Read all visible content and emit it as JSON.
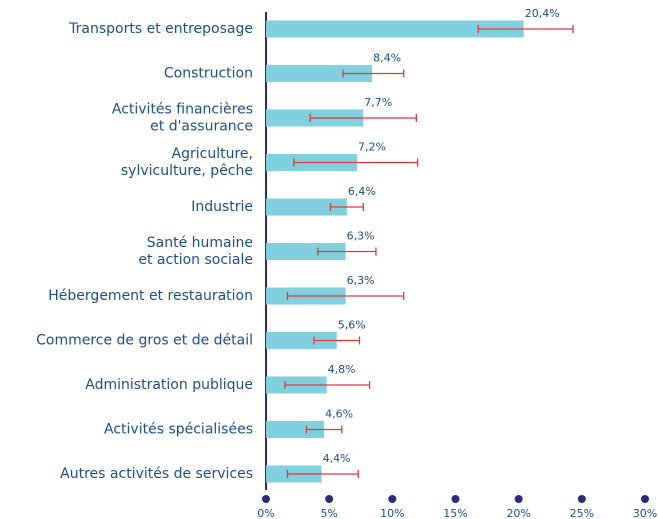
{
  "chart_data": {
    "type": "bar",
    "orientation": "horizontal",
    "categories": [
      [
        "Transports et entreposage"
      ],
      [
        "Construction"
      ],
      [
        "Activités financières",
        "et d'assurance"
      ],
      [
        "Agriculture,",
        "sylviculture, pêche"
      ],
      [
        "Industrie"
      ],
      [
        "Santé humaine",
        "et action sociale"
      ],
      [
        "Hébergement et restauration"
      ],
      [
        "Commerce de gros et de détail"
      ],
      [
        "Administration publique"
      ],
      [
        "Activités spécialisées"
      ],
      [
        "Autres activités de services"
      ]
    ],
    "values": [
      20.4,
      8.4,
      7.7,
      7.2,
      6.4,
      6.3,
      6.3,
      5.6,
      4.8,
      4.6,
      4.4
    ],
    "value_labels": [
      "20,4%",
      "8,4%",
      "7,7%",
      "7,2%",
      "6,4%",
      "6,3%",
      "6,3%",
      "5,6%",
      "4,8%",
      "4,6%",
      "4,4%"
    ],
    "error_low": [
      16.8,
      6.1,
      3.5,
      2.2,
      5.1,
      4.1,
      1.7,
      3.8,
      1.5,
      3.2,
      1.7
    ],
    "error_high": [
      24.3,
      10.9,
      11.9,
      12.0,
      7.7,
      8.7,
      10.9,
      7.4,
      8.2,
      6.0,
      7.3
    ],
    "color": "#80d0e0",
    "error_color": "#e0383a",
    "xlim": [
      0,
      30
    ],
    "xticks": [
      {
        "value": 0,
        "label": "0%"
      },
      {
        "value": 5,
        "label": "5%"
      },
      {
        "value": 10,
        "label": "10%"
      },
      {
        "value": 15,
        "label": "15%"
      },
      {
        "value": 20,
        "label": "20%"
      },
      {
        "value": 25,
        "label": "25%"
      },
      {
        "value": 30,
        "label": "30%"
      }
    ]
  }
}
